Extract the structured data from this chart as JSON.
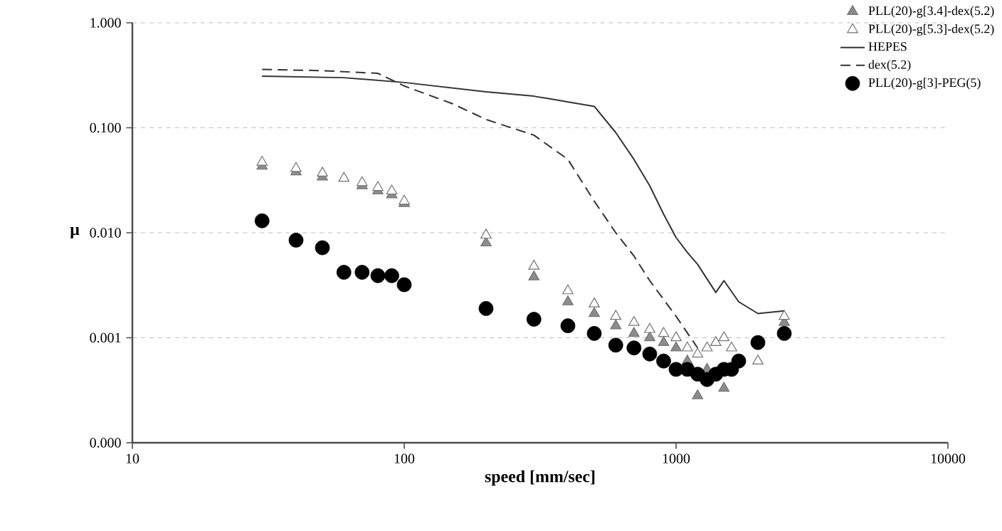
{
  "chart_data": {
    "type": "scatter",
    "xlabel": "speed [mm/sec]",
    "ylabel": "µ",
    "log": "xy",
    "grid": "y",
    "legend": "top right",
    "xlim": [
      10,
      10000
    ],
    "ylim": [
      0.0001,
      1
    ],
    "xticks": [
      10,
      100,
      1000,
      10000
    ],
    "yticks": [
      {
        "value": 0.0001,
        "label": "0.000"
      },
      {
        "value": 0.001,
        "label": "0.001"
      },
      {
        "value": 0.01,
        "label": "0.010"
      },
      {
        "value": 0.1,
        "label": "0.100"
      },
      {
        "value": 1,
        "label": "1.000"
      }
    ],
    "series": [
      {
        "name": "PLL(20)-g[3.4]-dex(5.2)",
        "marker": "triangle",
        "color": "#8c8c8c",
        "x": [
          30,
          40,
          50,
          60,
          70,
          80,
          90,
          100,
          200,
          300,
          400,
          500,
          600,
          700,
          800,
          900,
          1000,
          1100,
          1200,
          1300,
          1400,
          1500,
          1600,
          2000,
          2500
        ],
        "values": [
          0.043,
          0.038,
          0.034,
          null,
          0.028,
          0.025,
          0.023,
          0.019,
          0.008,
          0.0038,
          0.0022,
          0.0017,
          0.0013,
          0.0011,
          0.001,
          0.0009,
          0.0008,
          0.0006,
          0.00028,
          0.0005,
          null,
          0.00033,
          null,
          null,
          0.0014
        ]
      },
      {
        "name": "PLL(20)-g[5.3]-dex(5.2)",
        "marker": "triangle",
        "color": "#ffffff",
        "x": [
          30,
          40,
          50,
          60,
          70,
          80,
          90,
          100,
          200,
          300,
          400,
          500,
          600,
          700,
          800,
          900,
          1000,
          1100,
          1200,
          1300,
          1400,
          1500,
          1600,
          2000,
          2500
        ],
        "values": [
          0.047,
          0.041,
          0.037,
          0.033,
          0.03,
          0.027,
          0.025,
          0.02,
          0.0095,
          0.0048,
          0.0028,
          0.0021,
          0.0016,
          0.0014,
          0.0012,
          0.0011,
          0.001,
          0.0008,
          0.0007,
          0.0008,
          0.0009,
          0.001,
          0.0008,
          0.0006,
          0.0016
        ]
      },
      {
        "name": "HEPES",
        "type": "line",
        "marker": "none",
        "line_style": "solid",
        "color": "#333333",
        "x": [
          30,
          60,
          100,
          200,
          300,
          500,
          600,
          700,
          800,
          900,
          1000,
          1100,
          1200,
          1400,
          1500,
          1700,
          2000,
          2500
        ],
        "values": [
          0.31,
          0.3,
          0.27,
          0.22,
          0.2,
          0.16,
          0.09,
          0.05,
          0.028,
          0.015,
          0.009,
          0.0065,
          0.005,
          0.0027,
          0.0035,
          0.0022,
          0.0017,
          0.0018
        ]
      },
      {
        "name": "dex(5.2)",
        "type": "line",
        "marker": "none",
        "line_style": "dashed",
        "color": "#333333",
        "x": [
          30,
          50,
          80,
          100,
          150,
          200,
          300,
          400,
          500,
          600,
          700,
          800,
          1000,
          1200
        ],
        "values": [
          0.36,
          0.35,
          0.33,
          0.25,
          0.17,
          0.12,
          0.085,
          0.05,
          0.02,
          0.01,
          0.006,
          0.0035,
          0.0016,
          0.0008
        ]
      },
      {
        "name": "PLL(20)-g[3]-PEG(5)",
        "marker": "circle",
        "color": "#000000",
        "x": [
          30,
          40,
          50,
          60,
          70,
          80,
          90,
          100,
          200,
          300,
          400,
          500,
          600,
          700,
          800,
          900,
          1000,
          1100,
          1200,
          1300,
          1400,
          1500,
          1600,
          1700,
          2000,
          2500
        ],
        "values": [
          0.013,
          0.0085,
          0.0072,
          0.0042,
          0.0042,
          0.0039,
          0.0039,
          0.0032,
          0.0019,
          0.0015,
          0.0013,
          0.0011,
          0.00085,
          0.0008,
          0.0007,
          0.0006,
          0.0005,
          0.0005,
          0.00045,
          0.0004,
          0.00045,
          0.0005,
          0.0005,
          0.0006,
          0.0009,
          0.0011
        ]
      }
    ]
  }
}
